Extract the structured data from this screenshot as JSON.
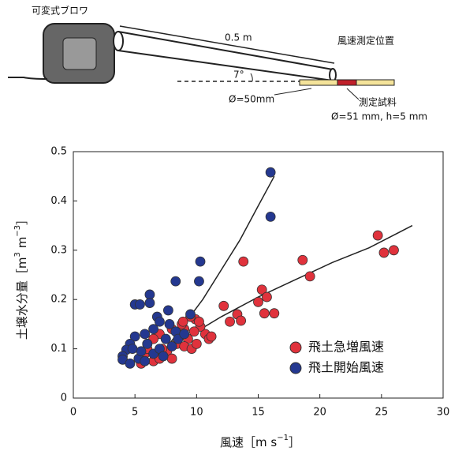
{
  "diagram": {
    "blower": "可変式ブロワ",
    "length": "0.5 m",
    "angle": "7°",
    "pipe_diameter": "Ø=50mm",
    "measure_point": "風速測定位置",
    "sample": "測定試料",
    "sample_size": "Ø=51 mm, h=5 mm"
  },
  "chart_data": {
    "type": "scatter",
    "xlabel_parts": [
      "風速［m s",
      "−1",
      "］"
    ],
    "ylabel_parts": [
      "土壌水分量［m",
      "3",
      " m",
      "−3",
      "］"
    ],
    "xlim": [
      0,
      30
    ],
    "xticks": [
      0,
      5,
      10,
      15,
      20,
      25,
      30
    ],
    "ylim": [
      0,
      0.5
    ],
    "yticks": [
      0,
      0.1,
      0.2,
      0.3,
      0.4,
      0.5
    ],
    "legend": "lower right",
    "series": [
      {
        "name": "飛土急増風速",
        "color": "#e0323c",
        "x": [
          24.7,
          25.2,
          26,
          18.6,
          19.2,
          13.8,
          15.3,
          15.5,
          16.3,
          15,
          15.7,
          12.2,
          12.7,
          13.3,
          13.6,
          10.7,
          10.3,
          11,
          9.9,
          10.2,
          9.5,
          9,
          8.8,
          9.3,
          8.5,
          8,
          7.5,
          7,
          6.5,
          6,
          5.8,
          5.5,
          6.5,
          7,
          7.6,
          8,
          8.4,
          9,
          9.6,
          10,
          6,
          7.2,
          8.9,
          9.8,
          11.2
        ],
        "values": [
          0.33,
          0.295,
          0.3,
          0.28,
          0.247,
          0.277,
          0.22,
          0.172,
          0.172,
          0.195,
          0.205,
          0.187,
          0.155,
          0.17,
          0.157,
          0.13,
          0.145,
          0.12,
          0.16,
          0.155,
          0.165,
          0.14,
          0.15,
          0.12,
          0.13,
          0.14,
          0.12,
          0.13,
          0.12,
          0.11,
          0.09,
          0.07,
          0.075,
          0.08,
          0.095,
          0.08,
          0.11,
          0.105,
          0.1,
          0.11,
          0.1,
          0.1,
          0.155,
          0.135,
          0.125
        ]
      },
      {
        "name": "飛土開始風速",
        "color": "#243890",
        "x": [
          16,
          16,
          10.3,
          10.2,
          8.3,
          7.7,
          5,
          5.4,
          6.2,
          6.2,
          6.8,
          7,
          8.3,
          7.8,
          6.5,
          5.8,
          5,
          4.6,
          4.3,
          4,
          4,
          4.6,
          5.3,
          5.8,
          6.5,
          7,
          6,
          5.5,
          7.5,
          8,
          8.5,
          9,
          9.5,
          4.8,
          7.3
        ],
        "values": [
          0.458,
          0.368,
          0.277,
          0.237,
          0.237,
          0.178,
          0.19,
          0.19,
          0.21,
          0.193,
          0.165,
          0.155,
          0.135,
          0.15,
          0.14,
          0.13,
          0.125,
          0.11,
          0.098,
          0.085,
          0.078,
          0.07,
          0.08,
          0.075,
          0.09,
          0.1,
          0.11,
          0.095,
          0.12,
          0.105,
          0.12,
          0.13,
          0.17,
          0.1,
          0.085
        ]
      }
    ],
    "fits": [
      {
        "x": [
          9,
          12,
          15,
          18,
          21,
          24,
          27.5
        ],
        "y": [
          0.12,
          0.165,
          0.205,
          0.24,
          0.275,
          0.305,
          0.35
        ]
      },
      {
        "x": [
          7.5,
          9,
          10.5,
          12,
          13.5,
          15,
          16.3
        ],
        "y": [
          0.1,
          0.15,
          0.2,
          0.26,
          0.32,
          0.39,
          0.45
        ]
      }
    ]
  }
}
